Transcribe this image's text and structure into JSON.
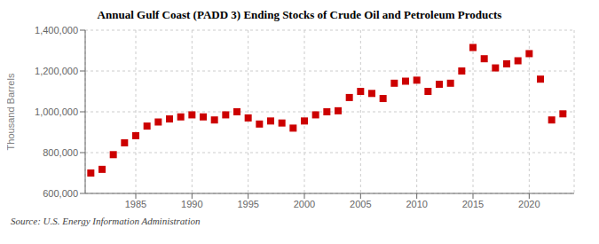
{
  "chart_data": {
    "type": "scatter",
    "title": "Annual Gulf Coast (PADD 3) Ending Stocks of Crude Oil and Petroleum Products",
    "ylabel": "Thousand Barrels",
    "annotations": [
      "Source: U.S. Energy Information Administration"
    ],
    "x": [
      1981,
      1982,
      1983,
      1984,
      1985,
      1986,
      1987,
      1988,
      1989,
      1990,
      1991,
      1992,
      1993,
      1994,
      1995,
      1996,
      1997,
      1998,
      1999,
      2000,
      2001,
      2002,
      2003,
      2004,
      2005,
      2006,
      2007,
      2008,
      2009,
      2010,
      2011,
      2012,
      2013,
      2014,
      2015,
      2016,
      2017,
      2018,
      2019,
      2020,
      2021,
      2022,
      2023
    ],
    "values": [
      700000,
      718000,
      790000,
      848000,
      883000,
      930000,
      950000,
      965000,
      975000,
      985000,
      975000,
      960000,
      985000,
      1000000,
      970000,
      940000,
      955000,
      945000,
      920000,
      955000,
      985000,
      1000000,
      1005000,
      1070000,
      1100000,
      1090000,
      1065000,
      1140000,
      1150000,
      1155000,
      1100000,
      1135000,
      1140000,
      1200000,
      1315000,
      1260000,
      1215000,
      1235000,
      1250000,
      1285000,
      1160000,
      960000,
      990000
    ],
    "color": "#cc0000",
    "marker": "square",
    "xlim": [
      1980.5,
      2024
    ],
    "xticks": [
      1985,
      1990,
      1995,
      2000,
      2005,
      2010,
      2015,
      2020
    ],
    "ylim": [
      600000,
      1400000
    ],
    "yticks": [
      {
        "value": 600000,
        "label": "600,000"
      },
      {
        "value": 800000,
        "label": "800,000"
      },
      {
        "value": 1000000,
        "label": "1,000,000"
      },
      {
        "value": 1200000,
        "label": "1,200,000"
      },
      {
        "value": 1400000,
        "label": "1,400,000"
      }
    ],
    "grid": true
  }
}
